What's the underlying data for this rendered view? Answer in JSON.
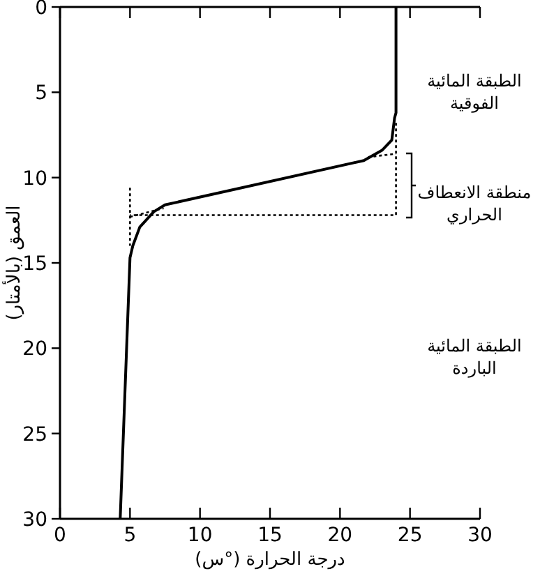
{
  "chart_data": {
    "type": "line",
    "xlabel": "درجة الحرارة (°س)",
    "ylabel": "العمق (بالأمتار)",
    "xlim": [
      0,
      30
    ],
    "ylim": [
      30,
      0
    ],
    "xticks": [
      0,
      5,
      10,
      15,
      20,
      25,
      30
    ],
    "yticks": [
      0,
      5,
      10,
      15,
      20,
      25,
      30
    ],
    "grid": false,
    "series": [
      {
        "color": "#000000",
        "line_style": "solid",
        "x": [
          24,
          24,
          23.9,
          23.7,
          23,
          21.7,
          7.5,
          6.7,
          5.7,
          5.2,
          5,
          4.3
        ],
        "values": [
          0,
          6.2,
          6.5,
          7.8,
          8.4,
          9.0,
          11.6,
          12.0,
          12.9,
          14.0,
          14.7,
          30
        ]
      },
      {
        "color": "#000000",
        "line_style": "dotted",
        "x": [
          24,
          24,
          5
        ],
        "values": [
          6.8,
          12.2,
          12.2
        ]
      },
      {
        "color": "#000000",
        "line_style": "dotted",
        "x": [
          5,
          5
        ],
        "values": [
          10.6,
          14
        ]
      },
      {
        "color": "#000000",
        "line_style": "dotted",
        "x": [
          22,
          24
        ],
        "values": [
          8.8,
          8.6
        ]
      },
      {
        "color": "#000000",
        "line_style": "dotted",
        "x": [
          5,
          7.4
        ],
        "values": [
          12.3,
          11.8
        ]
      }
    ],
    "annotations": [
      "الطبقة المائية\nالفوقية",
      "منطقة الانعطاف\nالحراري",
      "الطبقة المائية\nالباردة"
    ]
  }
}
